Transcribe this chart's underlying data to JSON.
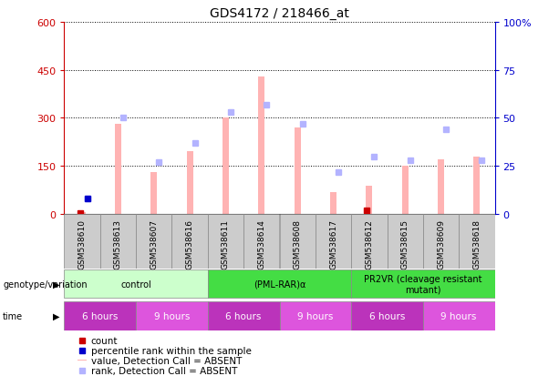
{
  "title": "GDS4172 / 218466_at",
  "samples": [
    "GSM538610",
    "GSM538613",
    "GSM538607",
    "GSM538616",
    "GSM538611",
    "GSM538614",
    "GSM538608",
    "GSM538617",
    "GSM538612",
    "GSM538615",
    "GSM538609",
    "GSM538618"
  ],
  "absent_value": [
    5,
    280,
    130,
    195,
    300,
    430,
    270,
    68,
    88,
    150,
    170,
    180
  ],
  "absent_rank_pct": [
    8,
    50,
    27,
    37,
    53,
    57,
    47,
    22,
    30,
    28,
    44,
    28
  ],
  "small_count": [
    3,
    null,
    null,
    null,
    null,
    null,
    null,
    null,
    10,
    null,
    null,
    null
  ],
  "small_rank_pct": [
    8,
    null,
    null,
    null,
    null,
    null,
    null,
    null,
    null,
    null,
    null,
    null
  ],
  "ylim_left": [
    0,
    600
  ],
  "ylim_right": [
    0,
    100
  ],
  "yticks_left": [
    0,
    150,
    300,
    450,
    600
  ],
  "yticks_right": [
    0,
    25,
    50,
    75,
    100
  ],
  "ytick_labels_left": [
    "0",
    "150",
    "300",
    "450",
    "600"
  ],
  "ytick_labels_right": [
    "0",
    "25",
    "50",
    "75",
    "100%"
  ],
  "left_axis_color": "#cc0000",
  "right_axis_color": "#0000cc",
  "genotype_groups": [
    {
      "label": "control",
      "color": "#ccffcc",
      "start": 0,
      "end": 4
    },
    {
      "label": "(PML-RAR)α",
      "color": "#44dd44",
      "start": 4,
      "end": 8
    },
    {
      "label": "PR2VR (cleavage resistant\nmutant)",
      "color": "#44dd44",
      "start": 8,
      "end": 12
    }
  ],
  "time_groups": [
    {
      "label": "6 hours",
      "color": "#cc44cc",
      "start": 0,
      "end": 2
    },
    {
      "label": "9 hours",
      "color": "#ee66ee",
      "start": 2,
      "end": 4
    },
    {
      "label": "6 hours",
      "color": "#cc44cc",
      "start": 4,
      "end": 6
    },
    {
      "label": "9 hours",
      "color": "#ee66ee",
      "start": 6,
      "end": 8
    },
    {
      "label": "6 hours",
      "color": "#cc44cc",
      "start": 8,
      "end": 10
    },
    {
      "label": "9 hours",
      "color": "#ee66ee",
      "start": 10,
      "end": 12
    }
  ],
  "bar_color_absent": "#ffb3b3",
  "bar_color_rank_absent": "#b3b3ff",
  "bar_color_count": "#cc0000",
  "bar_color_rank": "#0000cc",
  "background_color": "#ffffff",
  "sample_bg_color": "#cccccc"
}
